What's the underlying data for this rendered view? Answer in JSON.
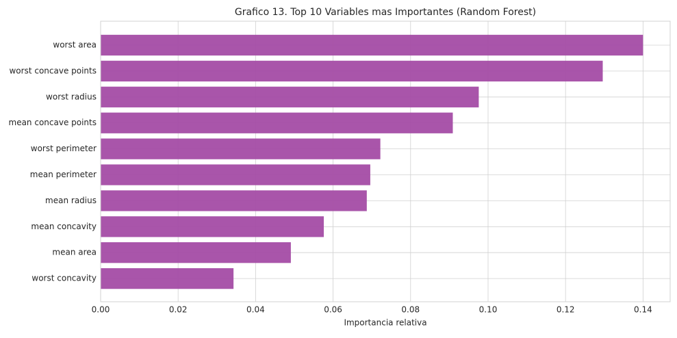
{
  "chart_data": {
    "type": "barh",
    "title": "Grafico 13. Top 10 Variables mas Importantes (Random Forest)",
    "x_label": "Importancia relativa",
    "categories": [
      "worst area",
      "worst concave points",
      "worst radius",
      "mean concave points",
      "worst perimeter",
      "mean perimeter",
      "mean radius",
      "mean concavity",
      "mean area",
      "worst concavity"
    ],
    "values": [
      0.14,
      0.1296,
      0.0976,
      0.0909,
      0.0722,
      0.0696,
      0.0687,
      0.0576,
      0.0491,
      0.0343
    ],
    "color": "#a44ca5",
    "xlim": [
      0,
      0.147
    ],
    "xticks": [
      {
        "value": 0,
        "label": "0.00"
      },
      {
        "value": 0.02,
        "label": "0.02"
      },
      {
        "value": 0.04,
        "label": "0.04"
      },
      {
        "value": 0.06,
        "label": "0.06"
      },
      {
        "value": 0.08,
        "label": "0.08"
      },
      {
        "value": 0.1,
        "label": "0.10"
      },
      {
        "value": 0.12,
        "label": "0.12"
      },
      {
        "value": 0.14,
        "label": "0.14"
      }
    ],
    "grid": true
  }
}
